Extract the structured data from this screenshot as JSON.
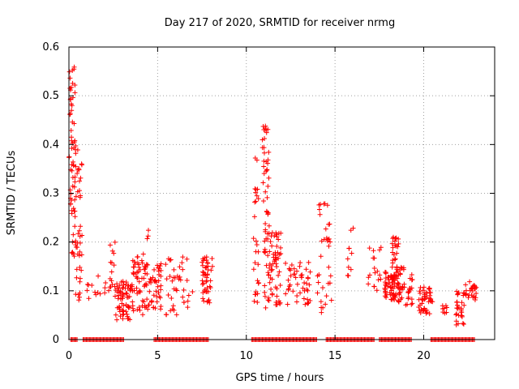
{
  "chart_data": {
    "type": "scatter",
    "title": "Day 217 of 2020, SRMTID for receiver nrmg",
    "xlabel": "GPS time / hours",
    "ylabel": "SRMTID / TECUs",
    "xlim": [
      0,
      24
    ],
    "ylim": [
      0,
      0.6
    ],
    "x_ticks": [
      0,
      5,
      10,
      15,
      20
    ],
    "y_ticks": [
      0,
      0.1,
      0.2,
      0.3,
      0.4,
      0.5,
      0.6
    ],
    "x_tick_labels": [
      "0",
      "5",
      "10",
      "15",
      "20"
    ],
    "y_tick_labels": [
      "0",
      "0.1",
      "0.2",
      "0.3",
      "0.4",
      "0.5",
      "0.6"
    ],
    "grid": true,
    "marker": "+",
    "color": "#ff0000",
    "zero_baseline_ranges": [
      [
        0.1,
        0.5
      ],
      [
        0.8,
        3.1
      ],
      [
        4.8,
        7.9
      ],
      [
        10.3,
        14.0
      ],
      [
        14.5,
        17.2
      ],
      [
        17.5,
        19.3
      ],
      [
        20.4,
        22.9
      ]
    ],
    "clusters": [
      {
        "x": [
          0.0,
          0.15
        ],
        "y": [
          0.27,
          0.58
        ],
        "n": 22
      },
      {
        "x": [
          0.15,
          0.35
        ],
        "y": [
          0.17,
          0.56
        ],
        "n": 40
      },
      {
        "x": [
          0.35,
          0.75
        ],
        "y": [
          0.08,
          0.4
        ],
        "n": 45
      },
      {
        "x": [
          0.9,
          2.3
        ],
        "y": [
          0.08,
          0.14
        ],
        "n": 14
      },
      {
        "x": [
          2.3,
          2.6
        ],
        "y": [
          0.1,
          0.2
        ],
        "n": 14
      },
      {
        "x": [
          2.6,
          3.6
        ],
        "y": [
          0.04,
          0.12
        ],
        "n": 75
      },
      {
        "x": [
          3.6,
          4.4
        ],
        "y": [
          0.05,
          0.18
        ],
        "n": 45
      },
      {
        "x": [
          4.2,
          5.2
        ],
        "y": [
          0.06,
          0.16
        ],
        "n": 55
      },
      {
        "x": [
          4.3,
          4.5
        ],
        "y": [
          0.2,
          0.23
        ],
        "n": 3
      },
      {
        "x": [
          5.4,
          7.0
        ],
        "y": [
          0.05,
          0.19
        ],
        "n": 40
      },
      {
        "x": [
          7.5,
          8.1
        ],
        "y": [
          0.07,
          0.17
        ],
        "n": 45
      },
      {
        "x": [
          10.4,
          10.7
        ],
        "y": [
          0.06,
          0.39
        ],
        "n": 28
      },
      {
        "x": [
          10.9,
          11.3
        ],
        "y": [
          0.2,
          0.44
        ],
        "n": 40
      },
      {
        "x": [
          11.0,
          12.0
        ],
        "y": [
          0.06,
          0.22
        ],
        "n": 70
      },
      {
        "x": [
          12.2,
          13.2
        ],
        "y": [
          0.07,
          0.16
        ],
        "n": 30
      },
      {
        "x": [
          13.2,
          13.6
        ],
        "y": [
          0.07,
          0.18
        ],
        "n": 18
      },
      {
        "x": [
          14.0,
          14.8
        ],
        "y": [
          0.05,
          0.28
        ],
        "n": 35
      },
      {
        "x": [
          15.7,
          16.1
        ],
        "y": [
          0.13,
          0.23
        ],
        "n": 10
      },
      {
        "x": [
          16.8,
          17.6
        ],
        "y": [
          0.1,
          0.19
        ],
        "n": 18
      },
      {
        "x": [
          17.8,
          18.4
        ],
        "y": [
          0.08,
          0.14
        ],
        "n": 50
      },
      {
        "x": [
          18.2,
          18.6
        ],
        "y": [
          0.12,
          0.21
        ],
        "n": 30
      },
      {
        "x": [
          18.4,
          19.4
        ],
        "y": [
          0.07,
          0.15
        ],
        "n": 55
      },
      {
        "x": [
          19.7,
          20.5
        ],
        "y": [
          0.05,
          0.11
        ],
        "n": 45
      },
      {
        "x": [
          21.0,
          21.4
        ],
        "y": [
          0.05,
          0.07
        ],
        "n": 8
      },
      {
        "x": [
          21.8,
          22.3
        ],
        "y": [
          0.03,
          0.1
        ],
        "n": 30
      },
      {
        "x": [
          22.3,
          23.0
        ],
        "y": [
          0.08,
          0.12
        ],
        "n": 25
      }
    ]
  }
}
